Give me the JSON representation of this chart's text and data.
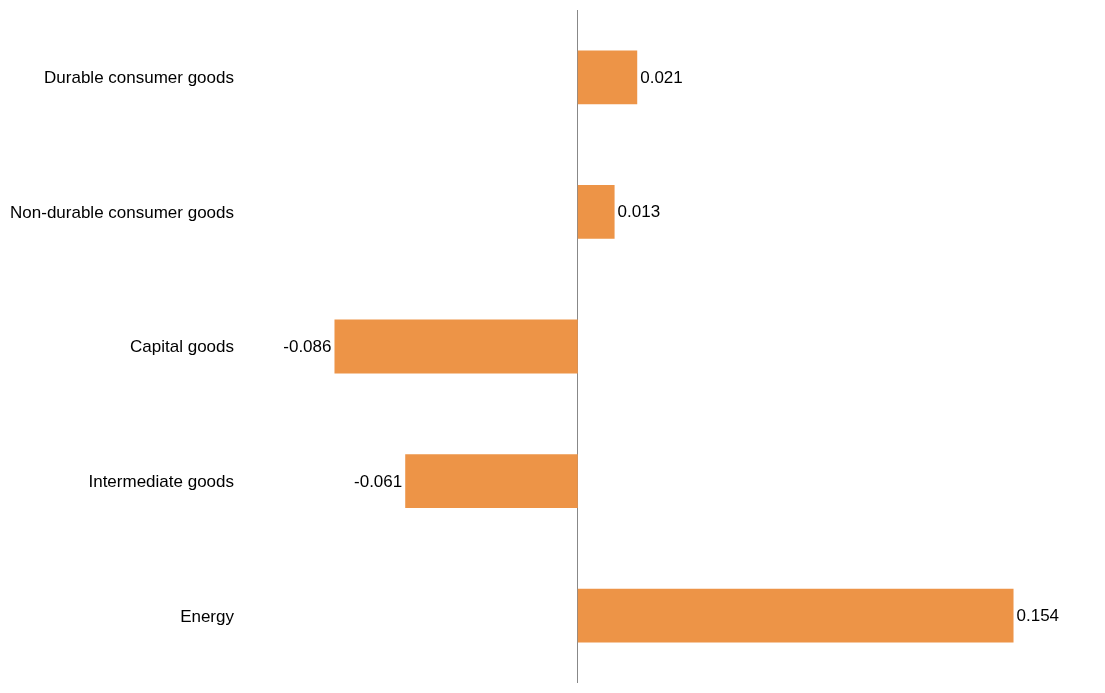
{
  "chart_data": {
    "type": "bar",
    "orientation": "horizontal",
    "categories": [
      "Durable consumer goods",
      "Non-durable consumer goods",
      "Capital goods",
      "Intermediate goods",
      "Energy"
    ],
    "values": [
      0.021,
      0.013,
      -0.086,
      -0.061,
      0.154
    ],
    "color": "#ed9447",
    "data_labels": true
  }
}
